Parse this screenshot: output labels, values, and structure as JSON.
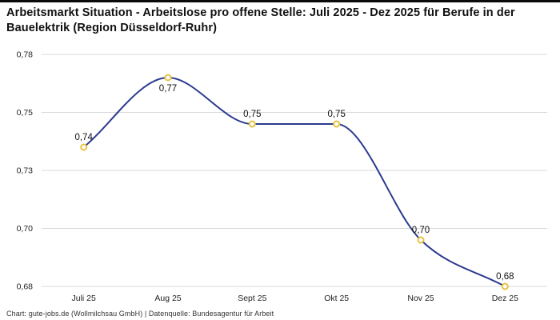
{
  "header": {
    "title": "Arbeitsmarkt Situation - Arbeitslose pro offene Stelle: Juli 2025 - Dez 2025 für Berufe in der Bauelektrik (Region Düsseldorf-Ruhr)"
  },
  "footer": {
    "caption": "Chart: gute-jobs.de (Wollmilchsau GmbH) | Datenquelle: Bundesagentur für Arbeit"
  },
  "chart_data": {
    "type": "line",
    "title": "Arbeitsmarkt Situation - Arbeitslose pro offene Stelle: Juli 2025 - Dez 2025 für Berufe in der Bauelektrik (Region Düsseldorf-Ruhr)",
    "categories": [
      "Juli 25",
      "Aug 25",
      "Sept 25",
      "Okt 25",
      "Nov 25",
      "Dez 25"
    ],
    "values": [
      0.74,
      0.77,
      0.75,
      0.75,
      0.7,
      0.68
    ],
    "point_labels": [
      "0,74",
      "0,77",
      "0,75",
      "0,75",
      "0,70",
      "0,68"
    ],
    "point_label_positions": [
      "above",
      "below",
      "above",
      "above",
      "above",
      "above"
    ],
    "ytick_labels": [
      "0,78",
      "0,75",
      "0,73",
      "0,70",
      "0,68"
    ],
    "ylim": [
      0.68,
      0.78
    ],
    "grid": "horizontal",
    "legend": "none",
    "line_color": "#2b3a8f",
    "marker_stroke_color": "#e8c23e",
    "marker_fill_color": "#ffffff",
    "grid_color": "#d9d9d9",
    "axis_label_color": "#222222",
    "point_label_color": "#111111"
  }
}
